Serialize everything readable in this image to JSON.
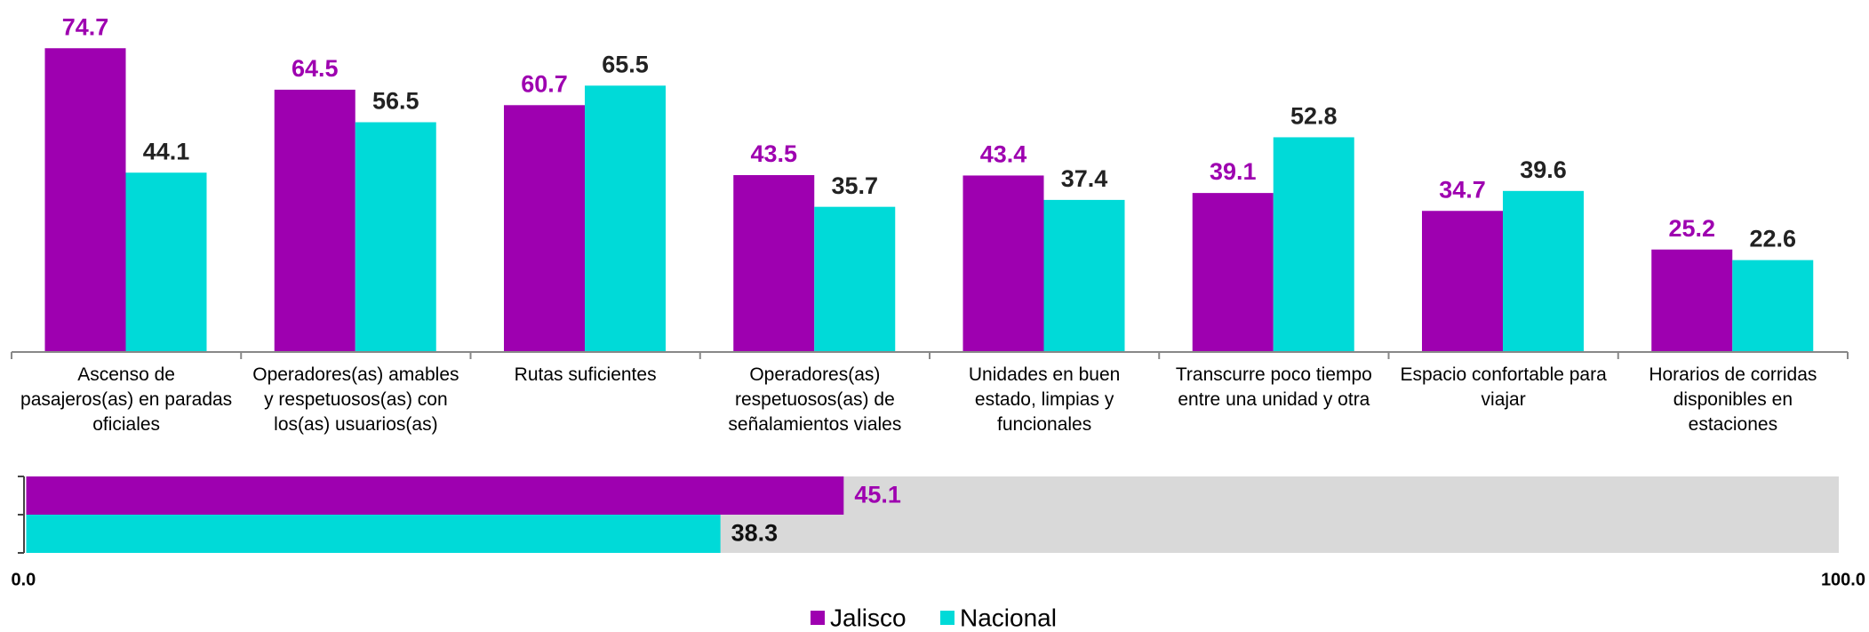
{
  "chart_data": [
    {
      "type": "bar",
      "categories": [
        "Ascenso de pasajeros(as) en paradas oficiales",
        "Operadores(as) amables y respetuosos(as) con los(as) usuarios(as)",
        "Rutas suficientes",
        "Operadores(as) respetuosos(as) de señalamientos viales",
        "Unidades en buen estado, limpias y funcionales",
        "Transcurre poco tiempo entre una unidad y otra",
        "Espacio confortable para viajar",
        "Horarios de corridas disponibles en estaciones"
      ],
      "series": [
        {
          "name": "Jalisco",
          "color": "#9e00b0",
          "label_color": "#9e00b0",
          "values": [
            74.7,
            64.5,
            60.7,
            43.5,
            43.4,
            39.1,
            34.7,
            25.2
          ]
        },
        {
          "name": "Nacional",
          "color": "#00dad8",
          "label_color": "#222222",
          "values": [
            44.1,
            56.5,
            65.5,
            35.7,
            37.4,
            52.8,
            39.6,
            22.6
          ]
        }
      ],
      "ylim": [
        0,
        80
      ]
    },
    {
      "type": "hbar",
      "series": [
        {
          "name": "Jalisco",
          "color": "#9e00b0",
          "label_color": "#9e00b0",
          "values": [
            45.1
          ]
        },
        {
          "name": "Nacional",
          "color": "#00dad8",
          "label_color": "#111111",
          "values": [
            38.3
          ]
        }
      ],
      "xlim": [
        0,
        100
      ],
      "xticks": [
        {
          "value": 0,
          "label": "0.0"
        },
        {
          "value": 100,
          "label": "100.0"
        }
      ]
    }
  ]
}
